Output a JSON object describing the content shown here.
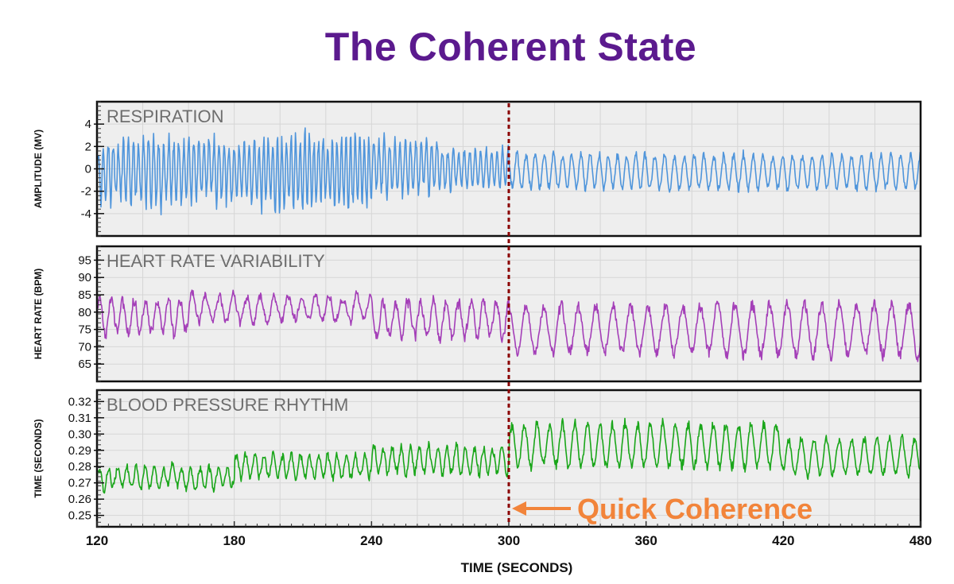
{
  "title": "The Coherent State",
  "colors": {
    "title": "#5b1a8e",
    "respiration": "#4f95db",
    "hrv": "#a43fb8",
    "bp": "#1aa61a",
    "marker": "#8b0000",
    "annotation": "#f2843a",
    "panel_bg": "#eeeeee",
    "grid": "#d6d6d6"
  },
  "chart_data": {
    "type": "line",
    "xlabel": "TIME (SECONDS)",
    "xlim": [
      120,
      480
    ],
    "xticks": [
      120,
      180,
      240,
      300,
      360,
      420,
      480
    ],
    "marker_x": 300,
    "annotation": {
      "text": "Quick Coherence",
      "x": 300
    },
    "panels": [
      {
        "name": "respiration",
        "title": "RESPIRATION",
        "ylabel": "AMPLITUDE (MV)",
        "ylim": [
          -6,
          6
        ],
        "yticks": [
          4,
          2,
          0,
          -2,
          -4
        ],
        "yticklabels": [
          "4",
          "2",
          "0",
          "-2",
          "-4"
        ],
        "segments": [
          {
            "x0": 120,
            "x1": 190,
            "period": 2.2,
            "amp": 2.6,
            "mean": -0.3,
            "noise": 1.1
          },
          {
            "x0": 190,
            "x1": 240,
            "period": 2.0,
            "amp": 2.9,
            "mean": -0.3,
            "noise": 1.0
          },
          {
            "x0": 240,
            "x1": 270,
            "period": 2.3,
            "amp": 2.2,
            "mean": 0.2,
            "noise": 0.8
          },
          {
            "x0": 270,
            "x1": 300,
            "period": 2.4,
            "amp": 1.6,
            "mean": 0.0,
            "noise": 0.5
          },
          {
            "x0": 300,
            "x1": 360,
            "period": 4.0,
            "amp": 1.5,
            "mean": -0.2,
            "noise": 0.2
          },
          {
            "x0": 360,
            "x1": 480,
            "period": 4.3,
            "amp": 1.5,
            "mean": -0.3,
            "noise": 0.2
          }
        ]
      },
      {
        "name": "hrv",
        "title": "HEART RATE VARIABILITY",
        "ylabel": "HEART RATE (BPM)",
        "ylim": [
          60,
          99
        ],
        "yticks": [
          95,
          90,
          85,
          80,
          75,
          70,
          65
        ],
        "yticklabels": [
          "95",
          "90",
          "85",
          "80",
          "75",
          "70",
          "65"
        ],
        "segments": [
          {
            "x0": 120,
            "x1": 160,
            "period": 5.0,
            "amp": 5.0,
            "mean": 79,
            "noise": 2.5
          },
          {
            "x0": 160,
            "x1": 240,
            "period": 6.0,
            "amp": 3.5,
            "mean": 81,
            "noise": 2.0
          },
          {
            "x0": 240,
            "x1": 300,
            "period": 5.5,
            "amp": 5.0,
            "mean": 78,
            "noise": 2.5
          },
          {
            "x0": 300,
            "x1": 390,
            "period": 7.6,
            "amp": 6.5,
            "mean": 75,
            "noise": 1.0
          },
          {
            "x0": 390,
            "x1": 480,
            "period": 7.6,
            "amp": 7.5,
            "mean": 75,
            "noise": 1.0
          }
        ]
      },
      {
        "name": "bp",
        "title": "BLOOD PRESSURE RHYTHM",
        "ylabel": "TIME (SECONDS)",
        "ylim": [
          0.243,
          0.327
        ],
        "yticks": [
          0.32,
          0.31,
          0.3,
          0.29,
          0.28,
          0.27,
          0.26,
          0.25
        ],
        "yticklabels": [
          "0.32",
          "0.31",
          "0.30",
          "0.29",
          "0.28",
          "0.27",
          "0.26",
          "0.25"
        ],
        "segments": [
          {
            "x0": 120,
            "x1": 180,
            "period": 4.0,
            "amp": 0.006,
            "mean": 0.273,
            "noise": 0.004
          },
          {
            "x0": 180,
            "x1": 240,
            "period": 4.0,
            "amp": 0.007,
            "mean": 0.28,
            "noise": 0.004
          },
          {
            "x0": 240,
            "x1": 300,
            "period": 4.0,
            "amp": 0.008,
            "mean": 0.284,
            "noise": 0.004
          },
          {
            "x0": 300,
            "x1": 420,
            "period": 5.5,
            "amp": 0.013,
            "mean": 0.293,
            "noise": 0.002
          },
          {
            "x0": 420,
            "x1": 480,
            "period": 5.5,
            "amp": 0.011,
            "mean": 0.286,
            "noise": 0.002
          }
        ]
      }
    ]
  }
}
